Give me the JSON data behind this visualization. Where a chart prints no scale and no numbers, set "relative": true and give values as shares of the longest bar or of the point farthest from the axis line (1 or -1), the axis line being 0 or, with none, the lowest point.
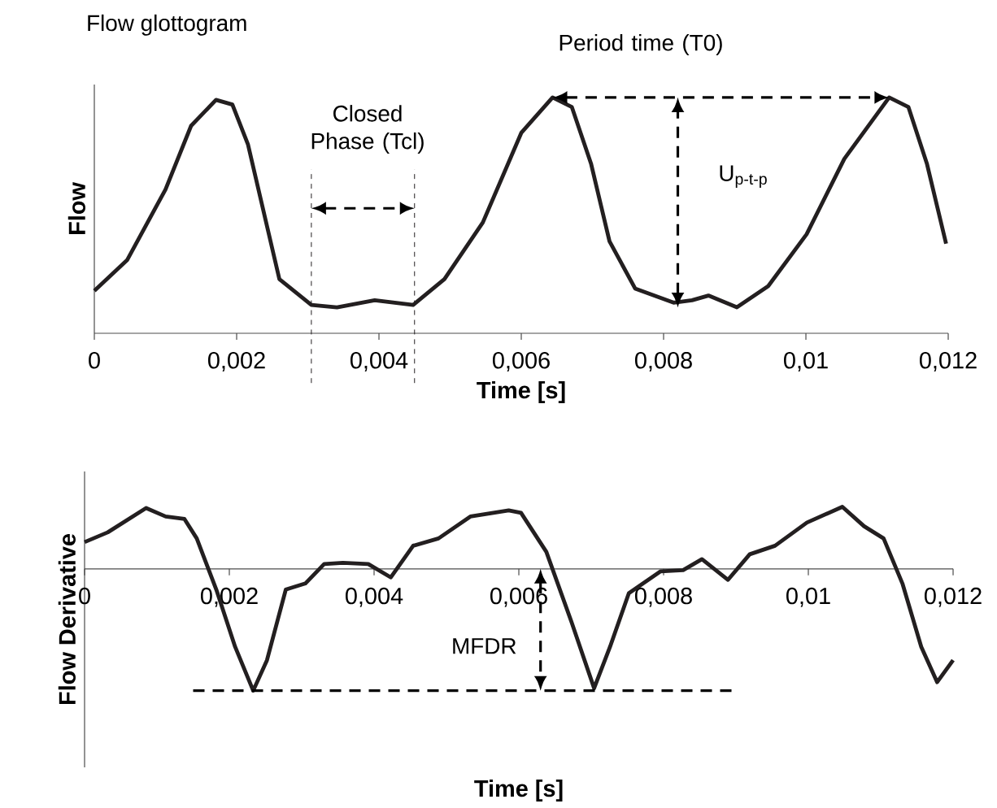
{
  "chart_data": [
    {
      "type": "line",
      "title": "Flow glottogram",
      "ylabel": "Flow",
      "xlabel": "Time [s]",
      "relative": true,
      "xlim": [
        0,
        0.012
      ],
      "xticks": [
        0,
        {
          "value": 0.002,
          "label": "0,002"
        },
        {
          "value": 0.004,
          "label": "0,004"
        },
        {
          "value": 0.006,
          "label": "0,006"
        },
        {
          "value": 0.008,
          "label": "0,008"
        },
        {
          "value": 0.01,
          "label": "0,01"
        },
        {
          "value": 0.012,
          "label": "0,012"
        }
      ],
      "series": [
        {
          "color": "#231f20",
          "x": [
            0,
            0.00046,
            0.001,
            0.00136,
            0.00171,
            0.00194,
            0.00216,
            0.00243,
            0.0026,
            0.00305,
            0.00341,
            0.00394,
            0.00448,
            0.00492,
            0.00546,
            0.006,
            0.00644,
            0.00671,
            0.00698,
            0.00724,
            0.0076,
            0.00814,
            0.0084,
            0.00863,
            0.00903,
            0.00947,
            0.01001,
            0.01054,
            0.01117,
            0.01144,
            0.0117,
            0.01197
          ],
          "values": [
            0.18,
            0.31,
            0.61,
            0.88,
            0.99,
            0.97,
            0.8,
            0.45,
            0.23,
            0.12,
            0.11,
            0.14,
            0.12,
            0.23,
            0.47,
            0.85,
            1.0,
            0.96,
            0.72,
            0.39,
            0.19,
            0.13,
            0.14,
            0.16,
            0.11,
            0.2,
            0.42,
            0.74,
            1.0,
            0.96,
            0.72,
            0.38
          ]
        }
      ],
      "ref_lines": [
        {
          "axis": "x",
          "value": 0.00305,
          "line_style": "dashed",
          "color": "#231f20"
        },
        {
          "axis": "x",
          "value": 0.0045,
          "line_style": "dashed",
          "color": "#231f20"
        }
      ],
      "annotations": [
        "Period time (T0)",
        "Closed Phase (Tcl)",
        "U$_{p-t-p}$"
      ]
    },
    {
      "type": "line",
      "ylabel": "Flow Derivative",
      "xlabel": "Time [s]",
      "relative": true,
      "xlim": [
        0,
        0.012
      ],
      "xticks": [
        0,
        {
          "value": 0.002,
          "label": "0,002"
        },
        {
          "value": 0.004,
          "label": "0,004"
        },
        {
          "value": 0.006,
          "label": "0,006"
        },
        {
          "value": 0.008,
          "label": "0,008"
        },
        {
          "value": 0.01,
          "label": "0,01"
        },
        {
          "value": 0.012,
          "label": "0,012"
        }
      ],
      "series": [
        {
          "color": "#231f20",
          "x": [
            0,
            0.00032,
            0.00085,
            0.00112,
            0.00138,
            0.00155,
            0.00182,
            0.00208,
            0.00233,
            0.00252,
            0.00278,
            0.00305,
            0.00331,
            0.00357,
            0.00392,
            0.00423,
            0.00454,
            0.00489,
            0.00533,
            0.00586,
            0.00603,
            0.00638,
            0.00673,
            0.00704,
            0.00726,
            0.00752,
            0.00796,
            0.00827,
            0.00853,
            0.00889,
            0.00919,
            0.00954,
            0.00998,
            0.01047,
            0.01077,
            0.01104,
            0.0113,
            0.01156,
            0.01178,
            0.012
          ],
          "values": [
            0.22,
            0.3,
            0.5,
            0.43,
            0.41,
            0.25,
            -0.17,
            -0.64,
            -1.0,
            -0.75,
            -0.17,
            -0.12,
            0.04,
            0.05,
            0.04,
            -0.07,
            0.19,
            0.25,
            0.43,
            0.48,
            0.46,
            0.14,
            -0.44,
            -0.98,
            -0.64,
            -0.2,
            -0.02,
            -0.01,
            0.08,
            -0.09,
            0.12,
            0.19,
            0.38,
            0.51,
            0.35,
            0.25,
            -0.12,
            -0.64,
            -0.93,
            -0.75
          ]
        }
      ],
      "annotations": [
        "MFDR"
      ]
    }
  ]
}
